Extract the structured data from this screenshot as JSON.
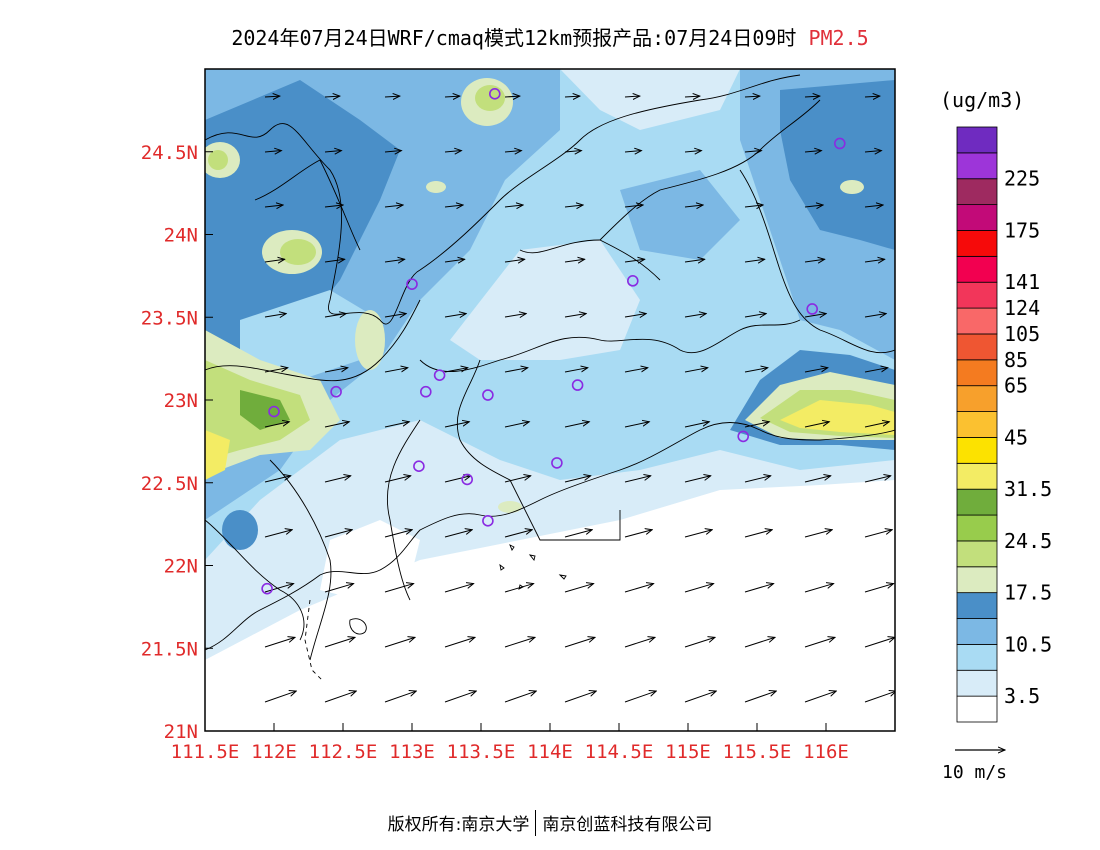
{
  "title": {
    "main": "2024年07月24日WRF/cmaq模式12km预报产品:07月24日09时",
    "variable": "PM2.5"
  },
  "axes": {
    "x_ticks": [
      "111.5E",
      "112E",
      "112.5E",
      "113E",
      "113.5E",
      "114E",
      "114.5E",
      "115E",
      "115.5E",
      "116E"
    ],
    "x_values": [
      111.5,
      112,
      112.5,
      113,
      113.5,
      114,
      114.5,
      115,
      115.5,
      116
    ],
    "y_ticks": [
      "21N",
      "21.5N",
      "22N",
      "22.5N",
      "23N",
      "23.5N",
      "24N",
      "24.5N"
    ],
    "y_values": [
      21,
      21.5,
      22,
      22.5,
      23,
      23.5,
      24,
      24.5
    ],
    "xlim": [
      111.5,
      116.5
    ],
    "ylim": [
      21,
      25
    ]
  },
  "colors": {
    "tick_text": "#e02a2a",
    "title_highlight": "#e0303a",
    "wind_vector": "#000000",
    "station_marker": "#8a2be2"
  },
  "legend": {
    "unit": "(ug/m3)",
    "colors": [
      "#ffffff",
      "#d8ecf8",
      "#a9dbf3",
      "#7cb8e4",
      "#4a8fc8",
      "#dcebc0",
      "#c2df7c",
      "#98cc4c",
      "#70ad3c",
      "#f3ec64",
      "#fce200",
      "#fbc130",
      "#f7a02c",
      "#f47b20",
      "#ef5632",
      "#f96868",
      "#f2365a",
      "#f20050",
      "#f60a0a",
      "#c20a78",
      "#9e2a60",
      "#9d35d9",
      "#6f2bc0"
    ],
    "labels": [
      "3.5",
      "10.5",
      "17.5",
      "24.5",
      "31.5",
      "45",
      "65",
      "85",
      "105",
      "124",
      "141",
      "175",
      "225"
    ],
    "label_box_index": [
      1,
      3,
      5,
      7,
      9,
      11,
      13,
      14,
      15,
      16,
      17,
      19,
      21
    ]
  },
  "wind_scale": {
    "label": "10 m/s"
  },
  "stations": [
    {
      "lon": 113.6,
      "lat": 24.85
    },
    {
      "lon": 116.1,
      "lat": 24.55
    },
    {
      "lon": 113.0,
      "lat": 23.7
    },
    {
      "lon": 114.6,
      "lat": 23.72
    },
    {
      "lon": 115.9,
      "lat": 23.55
    },
    {
      "lon": 112.45,
      "lat": 23.05
    },
    {
      "lon": 112.0,
      "lat": 22.93
    },
    {
      "lon": 113.1,
      "lat": 23.05
    },
    {
      "lon": 113.2,
      "lat": 23.15
    },
    {
      "lon": 113.55,
      "lat": 23.03
    },
    {
      "lon": 114.2,
      "lat": 23.09
    },
    {
      "lon": 115.4,
      "lat": 22.78
    },
    {
      "lon": 113.05,
      "lat": 22.6
    },
    {
      "lon": 113.4,
      "lat": 22.52
    },
    {
      "lon": 114.05,
      "lat": 22.62
    },
    {
      "lon": 113.55,
      "lat": 22.27
    },
    {
      "lon": 111.95,
      "lat": 21.86
    }
  ],
  "footer": {
    "left": "版权所有:南京大学",
    "right": "南京创蓝科技有限公司"
  }
}
